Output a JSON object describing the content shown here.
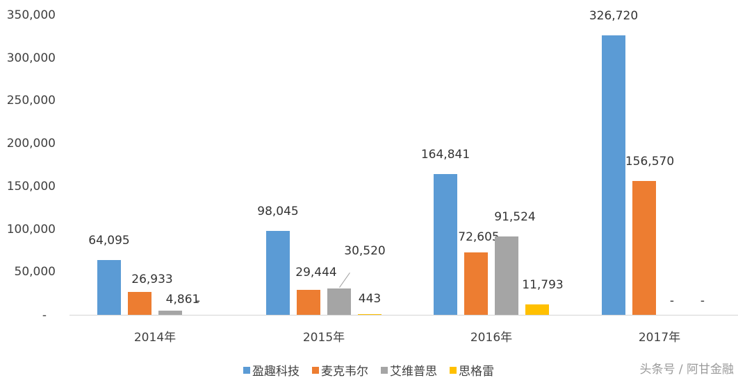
{
  "chart_data": {
    "type": "bar",
    "title": "",
    "xlabel": "",
    "ylabel": "",
    "categories": [
      "2014年",
      "2015年",
      "2016年",
      "2017年"
    ],
    "series": [
      {
        "name": "盈趣科技",
        "color": "#5b9bd5",
        "values": [
          64095,
          98045,
          164841,
          326720
        ],
        "labels": [
          "64,095",
          "98,045",
          "164,841",
          "326,720"
        ]
      },
      {
        "name": "麦克韦尔",
        "color": "#ed7d31",
        "values": [
          26933,
          29444,
          72605,
          156570
        ],
        "labels": [
          "26,933",
          "29,444",
          "72,605",
          "156,570"
        ]
      },
      {
        "name": "艾维普思",
        "color": "#a5a5a5",
        "values": [
          4861,
          30520,
          91524,
          null
        ],
        "labels": [
          "4,861",
          "30,520",
          "91,524",
          "-"
        ]
      },
      {
        "name": "思格雷",
        "color": "#ffc000",
        "values": [
          null,
          443,
          11793,
          null
        ],
        "labels": [
          "-",
          "443",
          "11,793",
          "-"
        ]
      }
    ],
    "ylim": [
      0,
      350000
    ],
    "yticks": [
      "-",
      "50,000",
      "100,000",
      "150,000",
      "200,000",
      "250,000",
      "300,000",
      "350,000"
    ],
    "grid": false,
    "legend_position": "bottom"
  },
  "watermark": "头条号 / 阿甘金融"
}
